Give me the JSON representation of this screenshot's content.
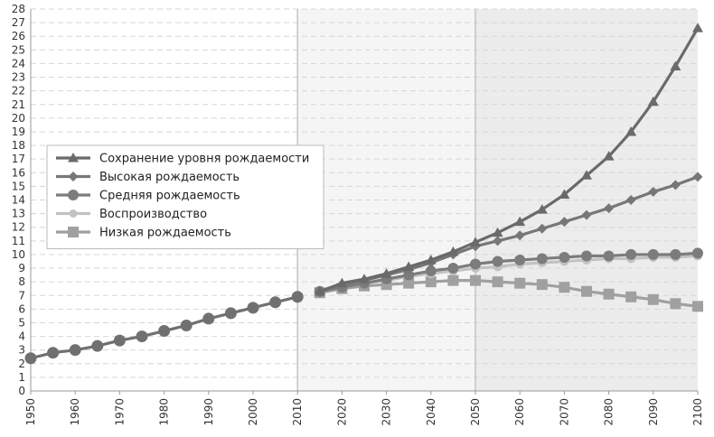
{
  "chart_data": {
    "type": "line",
    "title": "",
    "xlabel": "",
    "ylabel": "",
    "x": [
      1950,
      1955,
      1960,
      1965,
      1970,
      1975,
      1980,
      1985,
      1990,
      1995,
      2000,
      2005,
      2010,
      2015,
      2020,
      2025,
      2030,
      2035,
      2040,
      2045,
      2050,
      2055,
      2060,
      2065,
      2070,
      2075,
      2080,
      2085,
      2090,
      2095,
      2100
    ],
    "xlim": [
      1950,
      2100
    ],
    "ylim": [
      0,
      28
    ],
    "x_ticks": [
      "1950",
      "1960",
      "1970",
      "1980",
      "1990",
      "2000",
      "2010",
      "2020",
      "2030",
      "2040",
      "2050",
      "2060",
      "2070",
      "2080",
      "2090",
      "2100"
    ],
    "y_ticks": [
      "0",
      "1",
      "2",
      "3",
      "4",
      "5",
      "6",
      "7",
      "8",
      "9",
      "10",
      "11",
      "12",
      "13",
      "14",
      "15",
      "16",
      "17",
      "18",
      "19",
      "20",
      "21",
      "22",
      "23",
      "24",
      "25",
      "26",
      "27",
      "28"
    ],
    "grid": true,
    "shaded_periods": [
      {
        "from": 2010,
        "to": 2050,
        "color": "#f5f5f5"
      },
      {
        "from": 2050,
        "to": 2100,
        "color": "#ececec"
      }
    ],
    "vertical_lines": [
      2010,
      2050
    ],
    "legend_position": "left",
    "history": {
      "x": [
        1950,
        1955,
        1960,
        1965,
        1970,
        1975,
        1980,
        1985,
        1990,
        1995,
        2000,
        2005,
        2010
      ],
      "values": [
        2.4,
        2.8,
        3.0,
        3.3,
        3.7,
        4.0,
        4.4,
        4.8,
        5.3,
        5.7,
        6.1,
        6.5,
        6.9
      ],
      "color": "#707070",
      "marker": "circle"
    },
    "series": [
      {
        "name": "Сохранение уровня рождаемости",
        "color": "#6a6a6a",
        "marker": "triangle",
        "x": [
          2015,
          2020,
          2025,
          2030,
          2035,
          2040,
          2045,
          2050,
          2055,
          2060,
          2065,
          2070,
          2075,
          2080,
          2085,
          2090,
          2095,
          2100
        ],
        "values": [
          7.3,
          7.9,
          8.2,
          8.6,
          9.1,
          9.6,
          10.2,
          10.9,
          11.6,
          12.4,
          13.3,
          14.4,
          15.8,
          17.2,
          19.0,
          21.2,
          23.8,
          26.6
        ]
      },
      {
        "name": "Высокая рождаемость",
        "color": "#777777",
        "marker": "diamond",
        "x": [
          2015,
          2020,
          2025,
          2030,
          2035,
          2040,
          2045,
          2050,
          2055,
          2060,
          2065,
          2070,
          2075,
          2080,
          2085,
          2090,
          2095,
          2100
        ],
        "values": [
          7.3,
          7.8,
          8.1,
          8.5,
          8.9,
          9.4,
          10.0,
          10.6,
          11.0,
          11.4,
          11.9,
          12.4,
          12.9,
          13.4,
          14.0,
          14.6,
          15.1,
          15.7
        ]
      },
      {
        "name": "Средняя рождаемость",
        "color": "#7c7c7c",
        "marker": "circle",
        "x": [
          2015,
          2020,
          2025,
          2030,
          2035,
          2040,
          2045,
          2050,
          2055,
          2060,
          2065,
          2070,
          2075,
          2080,
          2085,
          2090,
          2095,
          2100
        ],
        "values": [
          7.3,
          7.6,
          7.9,
          8.2,
          8.5,
          8.8,
          9.0,
          9.3,
          9.5,
          9.6,
          9.7,
          9.8,
          9.9,
          9.9,
          10.0,
          10.0,
          10.0,
          10.1
        ]
      },
      {
        "name": "Воспроизводство",
        "color": "#c2c2c2",
        "marker": "circle",
        "x": [
          2015,
          2020,
          2025,
          2030,
          2035,
          2040,
          2045,
          2050,
          2055,
          2060,
          2065,
          2070,
          2075,
          2080,
          2085,
          2090,
          2095,
          2100
        ],
        "values": [
          7.3,
          7.6,
          7.9,
          8.1,
          8.4,
          8.6,
          8.8,
          9.0,
          9.1,
          9.3,
          9.4,
          9.5,
          9.6,
          9.7,
          9.7,
          9.8,
          9.8,
          9.9
        ]
      },
      {
        "name": "Низкая рождаемость",
        "color": "#a0a0a0",
        "marker": "square",
        "x": [
          2015,
          2020,
          2025,
          2030,
          2035,
          2040,
          2045,
          2050,
          2055,
          2060,
          2065,
          2070,
          2075,
          2080,
          2085,
          2090,
          2095,
          2100
        ],
        "values": [
          7.2,
          7.5,
          7.7,
          7.8,
          7.9,
          8.0,
          8.1,
          8.1,
          8.0,
          7.9,
          7.8,
          7.6,
          7.3,
          7.1,
          6.9,
          6.7,
          6.4,
          6.2
        ]
      }
    ]
  }
}
